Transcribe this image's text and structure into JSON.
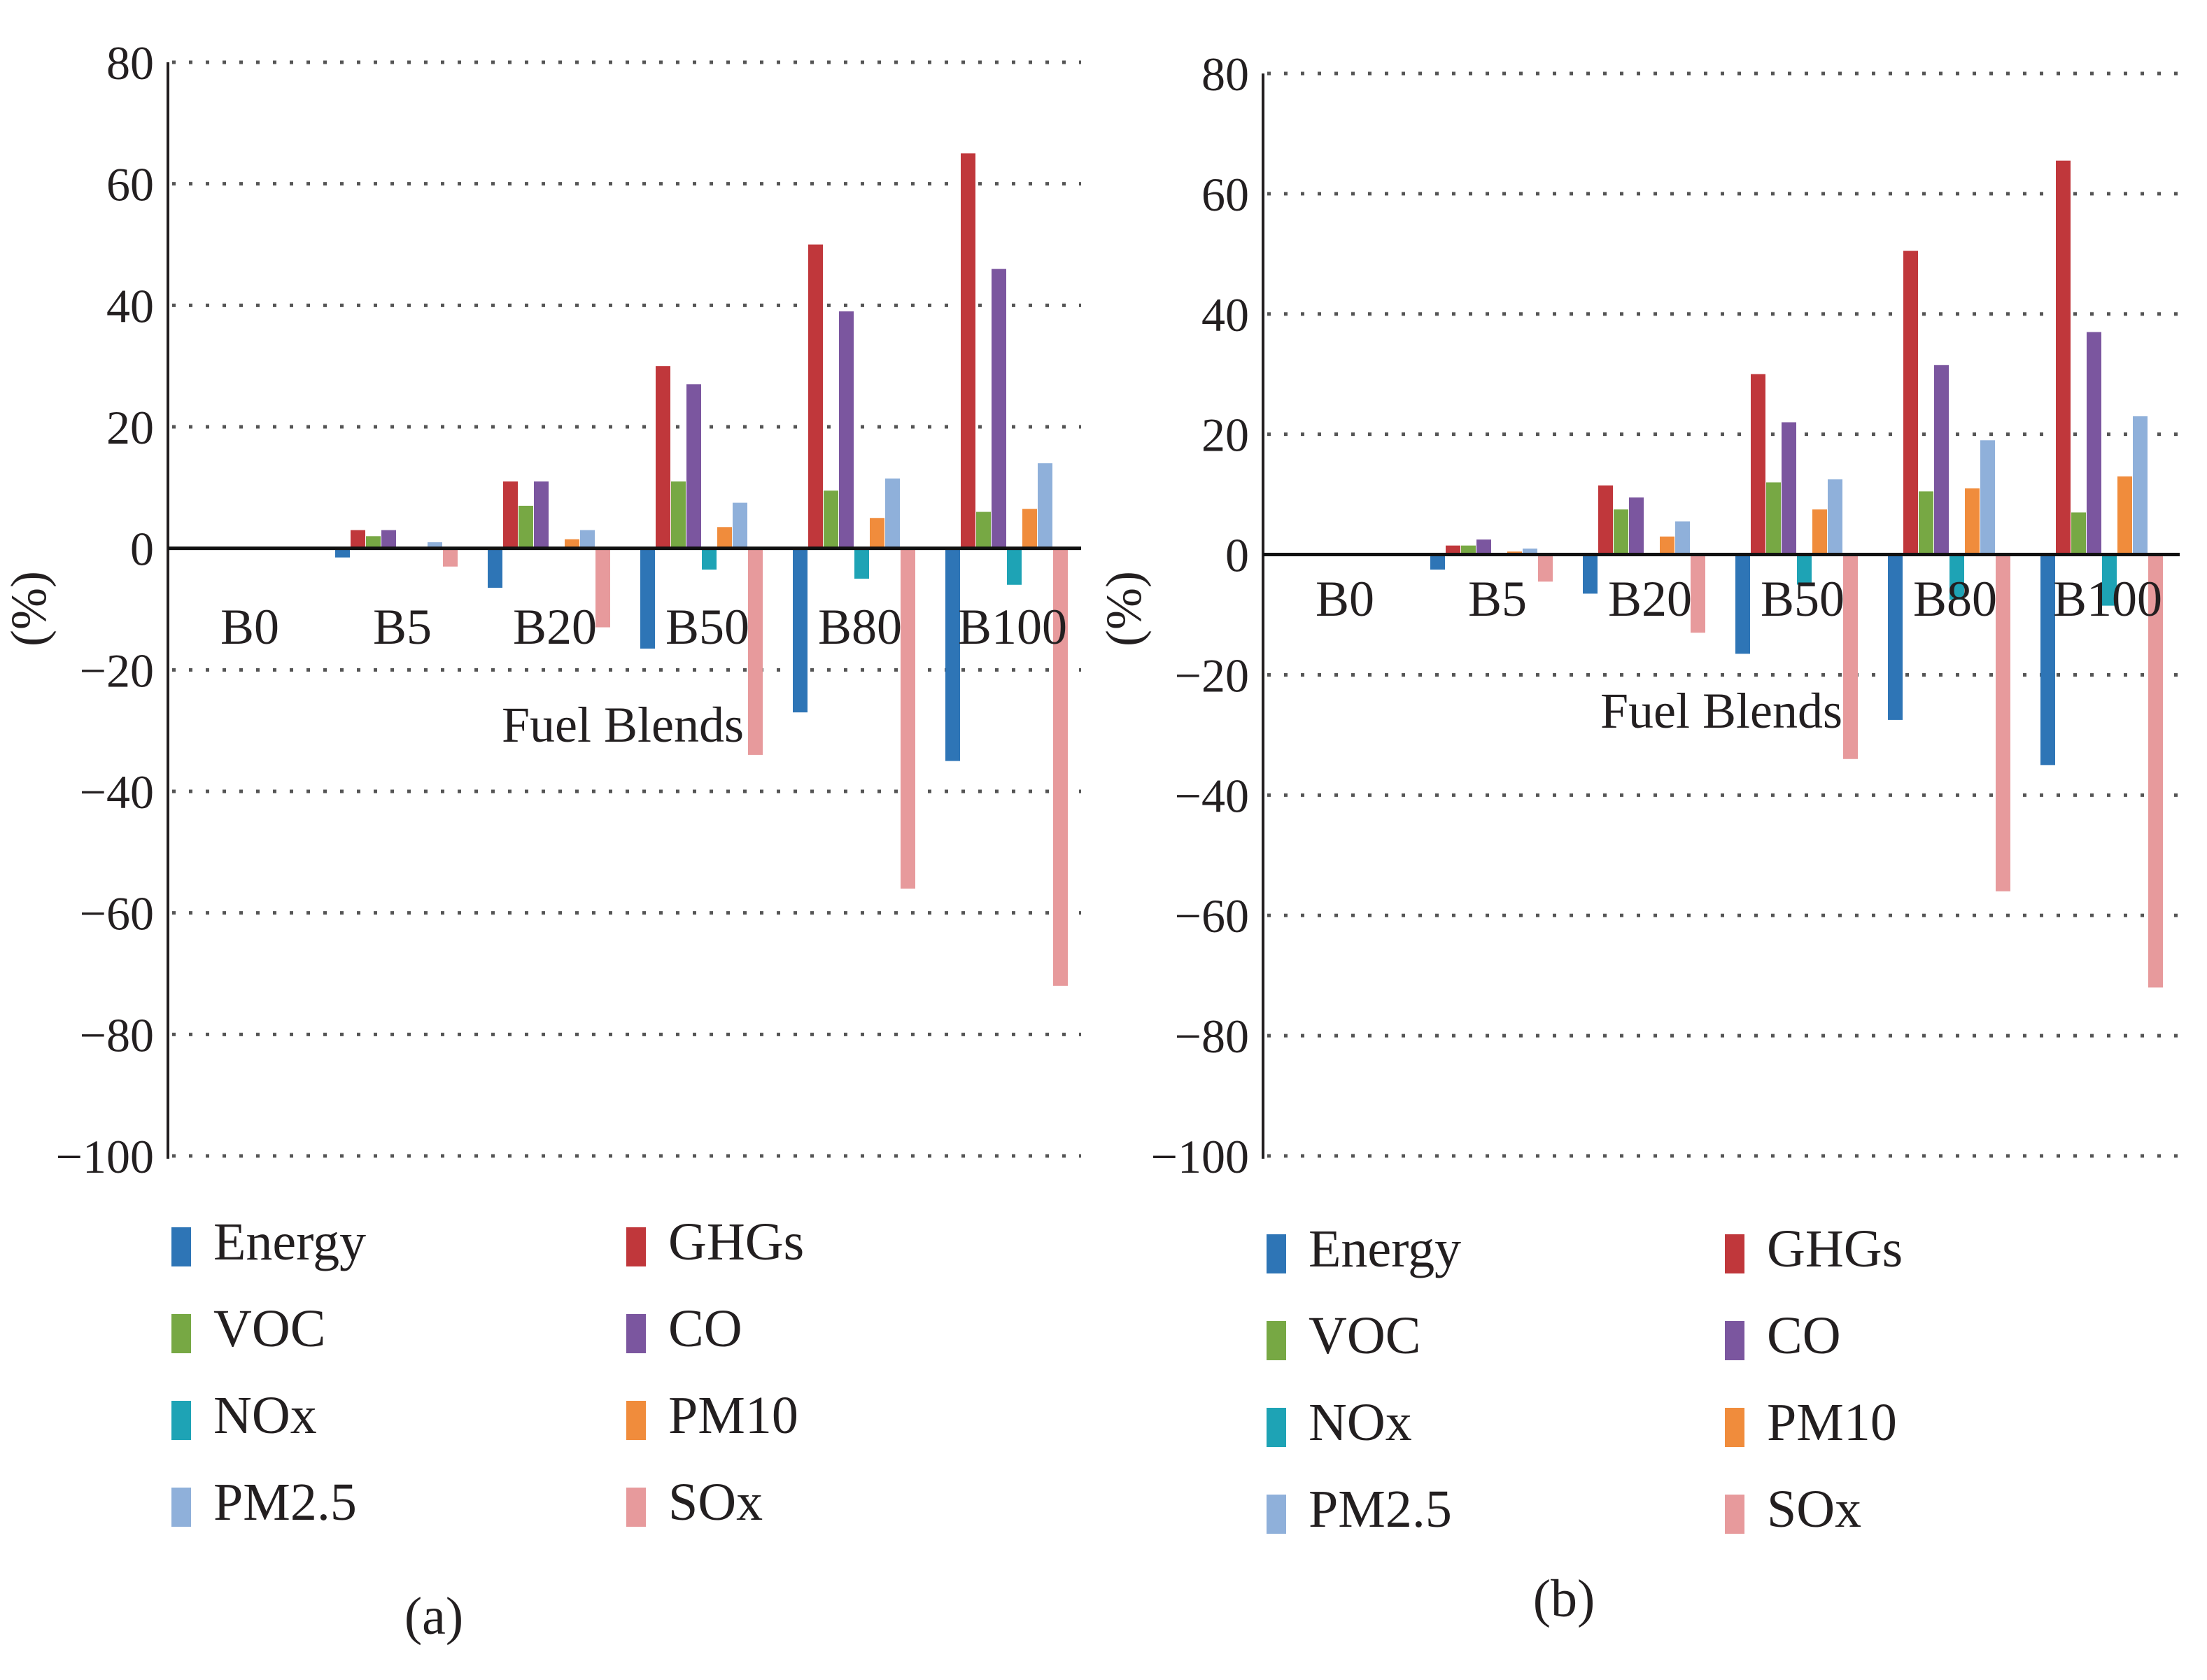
{
  "chart_data": [
    {
      "type": "bar",
      "panel_label": "(a)",
      "ylabel": "(%)",
      "xlabel": "Fuel Blends",
      "ylim": [
        -100,
        80
      ],
      "yticks": [
        80,
        60,
        40,
        20,
        0,
        -20,
        -40,
        -60,
        -80,
        -100
      ],
      "ytick_labels": [
        "80",
        "60",
        "40",
        "20",
        "0",
        "−20",
        "−40",
        "−60",
        "−80",
        "−100"
      ],
      "grid": true,
      "legend": "bottom",
      "categories": [
        "B0",
        "B5",
        "B20",
        "B50",
        "B80",
        "B100"
      ],
      "series": [
        {
          "name": "Energy",
          "color": "#2e75b6",
          "values": [
            0,
            -1.5,
            -6.5,
            -16.5,
            -27,
            -35
          ]
        },
        {
          "name": "GHGs",
          "color": "#c0373b",
          "values": [
            0,
            3,
            11,
            30,
            50,
            65
          ]
        },
        {
          "name": "VOC",
          "color": "#77a844",
          "values": [
            0,
            2,
            7,
            11,
            9.5,
            6
          ]
        },
        {
          "name": "CO",
          "color": "#7b569f",
          "values": [
            0,
            3,
            11,
            27,
            39,
            46
          ]
        },
        {
          "name": "NOx",
          "color": "#1ea3b5",
          "values": [
            0,
            0,
            0,
            -3.5,
            -5,
            -6
          ]
        },
        {
          "name": "PM10",
          "color": "#f08c3c",
          "values": [
            0,
            0,
            1.5,
            3.5,
            5,
            6.5
          ]
        },
        {
          "name": "PM2.5",
          "color": "#8fb0da",
          "values": [
            0,
            1,
            3,
            7.5,
            11.5,
            14
          ]
        },
        {
          "name": "SOx",
          "color": "#e79a9c",
          "values": [
            0,
            -3,
            -13,
            -34,
            -56,
            -72
          ]
        }
      ]
    },
    {
      "type": "bar",
      "panel_label": "(b)",
      "ylabel": "(%)",
      "xlabel": "Fuel Blends",
      "ylim": [
        -100,
        80
      ],
      "yticks": [
        80,
        60,
        40,
        20,
        0,
        -20,
        -40,
        -60,
        -80,
        -100
      ],
      "ytick_labels": [
        "80",
        "60",
        "40",
        "20",
        "0",
        "−20",
        "−40",
        "−60",
        "−80",
        "−100"
      ],
      "grid": true,
      "legend": "bottom",
      "categories": [
        "B0",
        "B5",
        "B20",
        "B50",
        "B80",
        "B100"
      ],
      "series": [
        {
          "name": "Energy",
          "color": "#2e75b6",
          "values": [
            0,
            -2.5,
            -6.5,
            -16.5,
            -27.5,
            -35
          ]
        },
        {
          "name": "GHGs",
          "color": "#c0373b",
          "values": [
            0,
            1.5,
            11.5,
            30,
            50.5,
            65.5
          ]
        },
        {
          "name": "VOC",
          "color": "#77a844",
          "values": [
            0,
            1.5,
            7.5,
            12,
            10.5,
            7
          ]
        },
        {
          "name": "CO",
          "color": "#7b569f",
          "values": [
            0,
            2.5,
            9.5,
            22,
            31.5,
            37
          ]
        },
        {
          "name": "NOx",
          "color": "#1ea3b5",
          "values": [
            0,
            0,
            0,
            -5,
            -7.5,
            -8.5
          ]
        },
        {
          "name": "PM10",
          "color": "#f08c3c",
          "values": [
            0,
            0.5,
            3,
            7.5,
            11,
            13
          ]
        },
        {
          "name": "PM2.5",
          "color": "#8fb0da",
          "values": [
            0,
            1,
            5.5,
            12.5,
            19,
            23
          ]
        },
        {
          "name": "SOx",
          "color": "#e79a9c",
          "values": [
            0,
            -4.5,
            -13,
            -34,
            -56,
            -72
          ]
        }
      ]
    }
  ]
}
